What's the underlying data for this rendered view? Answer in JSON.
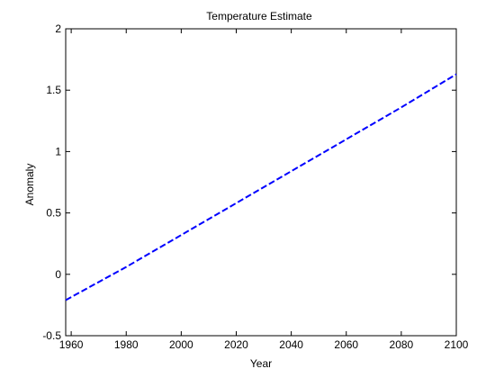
{
  "chart_data": {
    "type": "line",
    "title": "Temperature Estimate",
    "xlabel": "Year",
    "ylabel": "Anomaly",
    "xlim": [
      1958,
      2100
    ],
    "ylim": [
      -0.5,
      2
    ],
    "xticks": [
      1960,
      1980,
      2000,
      2020,
      2040,
      2060,
      2080,
      2100
    ],
    "yticks": [
      -0.5,
      0,
      0.5,
      1,
      1.5,
      2
    ],
    "ytick_labels": [
      "-0.5",
      "0",
      "0.5",
      "1",
      "1.5",
      "2"
    ],
    "grid": false,
    "series": [
      {
        "style": "dashed",
        "color": "#0000ff",
        "x": [
          1958,
          1980,
          2000,
          2020,
          2040,
          2060,
          2080,
          2100
        ],
        "y": [
          -0.21,
          0.06,
          0.32,
          0.58,
          0.84,
          1.1,
          1.36,
          1.63
        ]
      }
    ]
  }
}
